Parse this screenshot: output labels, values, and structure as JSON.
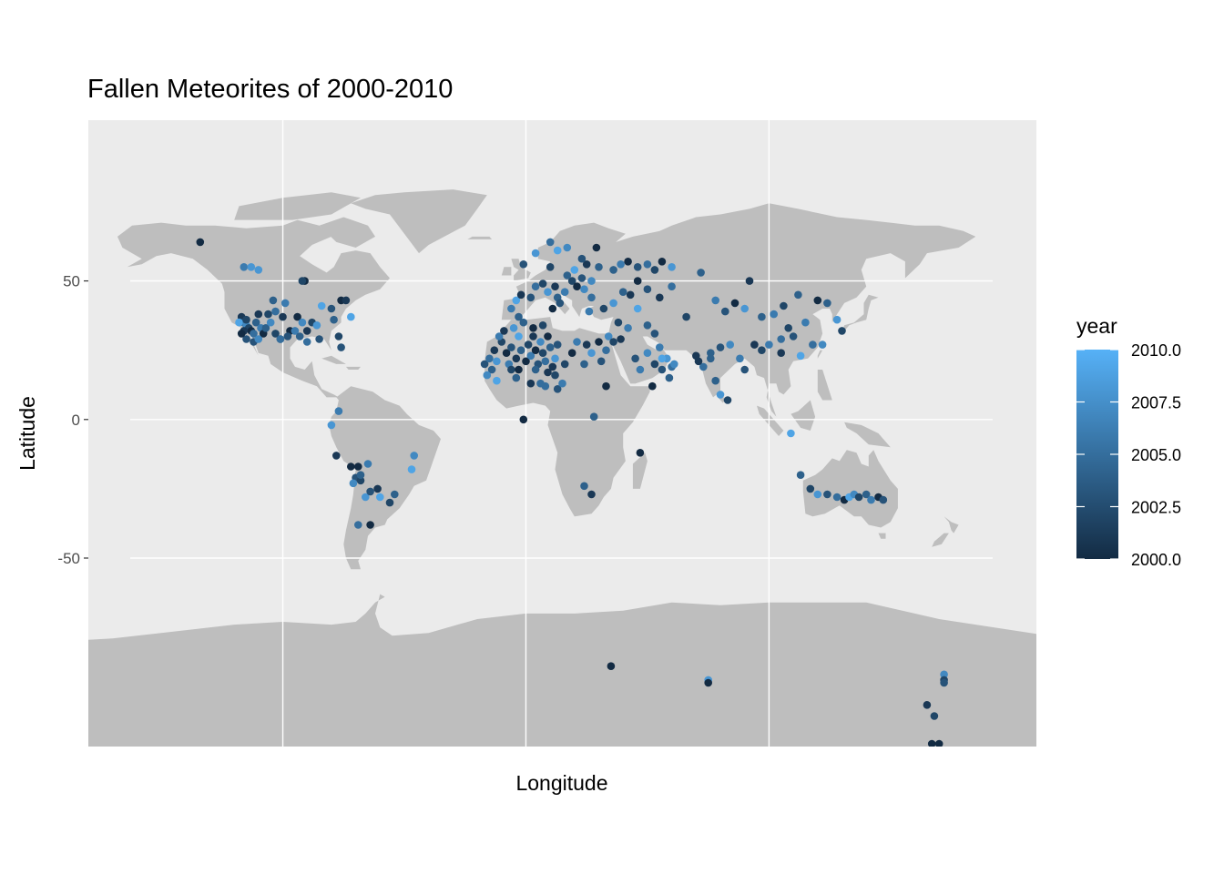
{
  "chart_data": {
    "type": "scatter",
    "title": "Fallen Meteorites of 2000-2010",
    "xlabel": "Longitude",
    "ylabel": "Latitude",
    "x_ticks": [],
    "y_ticks": [
      -50,
      0,
      50
    ],
    "xlim": [
      -180,
      210
    ],
    "ylim": [
      -118,
      108
    ],
    "grid": true,
    "x_gridlines": [
      -100,
      0,
      100
    ],
    "background": "light gray panel with gray world land masses",
    "legend": {
      "title": "year",
      "position": "right",
      "type": "colorbar",
      "range": [
        2000,
        2010
      ],
      "breaks": [
        2000.0,
        2002.5,
        2005.0,
        2007.5,
        2010.0
      ],
      "labels": [
        "2000.0",
        "2002.5",
        "2005.0",
        "2007.5",
        "2010.0"
      ],
      "color_low": "#132B43",
      "color_high": "#56B1F7"
    },
    "colors": {
      "panel": "#EBEBEB",
      "land": "#BEBEBE",
      "grid": "#FFFFFF",
      "low": "#132B43",
      "high": "#56B1F7"
    },
    "points": [
      [
        -134,
        64,
        2000
      ],
      [
        -116,
        55,
        2006
      ],
      [
        -113,
        55,
        2008
      ],
      [
        -110,
        54,
        2008
      ],
      [
        -91,
        50,
        2000
      ],
      [
        -104,
        43,
        2004
      ],
      [
        -117,
        37,
        2001
      ],
      [
        -116,
        35,
        2003
      ],
      [
        -115,
        34,
        2007
      ],
      [
        -114,
        33,
        2002
      ],
      [
        -113,
        32,
        2000
      ],
      [
        -112,
        31,
        2005
      ],
      [
        -116,
        32,
        2001
      ],
      [
        -118,
        35,
        2009
      ],
      [
        -115,
        36,
        2002
      ],
      [
        -111,
        35,
        2004
      ],
      [
        -109,
        33,
        2006
      ],
      [
        -108,
        31,
        2000
      ],
      [
        -112,
        28,
        2003
      ],
      [
        -110,
        29,
        2007
      ],
      [
        -106,
        38,
        2002
      ],
      [
        -103,
        39,
        2005
      ],
      [
        -100,
        37,
        2001
      ],
      [
        -97,
        32,
        2000
      ],
      [
        -98,
        30,
        2003
      ],
      [
        -95,
        32,
        2006
      ],
      [
        -93,
        30,
        2004
      ],
      [
        -90,
        32,
        2001
      ],
      [
        -88,
        35,
        2002
      ],
      [
        -86,
        34,
        2008
      ],
      [
        -84,
        41,
        2009
      ],
      [
        -79,
        36,
        2004
      ],
      [
        -76,
        43,
        2000
      ],
      [
        -74,
        43,
        2001
      ],
      [
        -80,
        40,
        2003
      ],
      [
        -77,
        30,
        2002
      ],
      [
        -76,
        26,
        2003
      ],
      [
        -72,
        37,
        2009
      ],
      [
        -90,
        28,
        2005
      ],
      [
        -101,
        29,
        2002
      ],
      [
        -94,
        37,
        2000
      ],
      [
        -92,
        35,
        2007
      ],
      [
        -85,
        29,
        2003
      ],
      [
        -99,
        42,
        2006
      ],
      [
        -107,
        33,
        2004
      ],
      [
        -110,
        38,
        2001
      ],
      [
        -105,
        35,
        2007
      ],
      [
        -103,
        31,
        2002
      ],
      [
        -101,
        29,
        2005
      ],
      [
        -115,
        29,
        2003
      ],
      [
        -117,
        31,
        2000
      ],
      [
        -92,
        50,
        2002
      ],
      [
        -80,
        -2,
        2008
      ],
      [
        -77,
        3,
        2006
      ],
      [
        -78,
        -13,
        2001
      ],
      [
        -72,
        -17,
        2000
      ],
      [
        -70,
        -21,
        2003
      ],
      [
        -71,
        -23,
        2007
      ],
      [
        -68,
        -22,
        2002
      ],
      [
        -65,
        -16,
        2006
      ],
      [
        -69,
        -17,
        2000
      ],
      [
        -68,
        -20,
        2004
      ],
      [
        -66,
        -28,
        2008
      ],
      [
        -64,
        -26,
        2003
      ],
      [
        -61,
        -25,
        2001
      ],
      [
        -60,
        -28,
        2009
      ],
      [
        -56,
        -30,
        2002
      ],
      [
        -54,
        -27,
        2004
      ],
      [
        -46,
        -13,
        2007
      ],
      [
        -47,
        -18,
        2009
      ],
      [
        -69,
        -38,
        2005
      ],
      [
        -64,
        -38,
        2000
      ],
      [
        -17,
        20,
        2003
      ],
      [
        -15,
        22,
        2005
      ],
      [
        -13,
        25,
        2001
      ],
      [
        -12,
        21,
        2008
      ],
      [
        -10,
        28,
        2002
      ],
      [
        -8,
        24,
        2000
      ],
      [
        -7,
        20,
        2006
      ],
      [
        -6,
        26,
        2003
      ],
      [
        -4,
        22,
        2001
      ],
      [
        -3,
        30,
        2009
      ],
      [
        -2,
        25,
        2004
      ],
      [
        0,
        21,
        2000
      ],
      [
        1,
        27,
        2002
      ],
      [
        2,
        23,
        2006
      ],
      [
        3,
        30,
        2001
      ],
      [
        4,
        25,
        2000
      ],
      [
        5,
        20,
        2003
      ],
      [
        6,
        28,
        2007
      ],
      [
        7,
        24,
        2002
      ],
      [
        8,
        21,
        2005
      ],
      [
        9,
        30,
        2000
      ],
      [
        10,
        26,
        2004
      ],
      [
        11,
        19,
        2001
      ],
      [
        12,
        22,
        2008
      ],
      [
        13,
        27,
        2003
      ],
      [
        -11,
        30,
        2006
      ],
      [
        -9,
        32,
        2001
      ],
      [
        -5,
        33,
        2008
      ],
      [
        -1,
        35,
        2004
      ],
      [
        3,
        33,
        2000
      ],
      [
        7,
        34,
        2002
      ],
      [
        -12,
        14,
        2009
      ],
      [
        -4,
        15,
        2004
      ],
      [
        2,
        13,
        2001
      ],
      [
        8,
        12,
        2005
      ],
      [
        13,
        11,
        2003
      ],
      [
        16,
        20,
        2002
      ],
      [
        19,
        24,
        2000
      ],
      [
        21,
        28,
        2006
      ],
      [
        24,
        20,
        2004
      ],
      [
        25,
        27,
        2001
      ],
      [
        27,
        24,
        2008
      ],
      [
        30,
        28,
        2000
      ],
      [
        33,
        25,
        2005
      ],
      [
        31,
        21,
        2003
      ],
      [
        34,
        30,
        2007
      ],
      [
        36,
        28,
        2002
      ],
      [
        33,
        12,
        2000
      ],
      [
        28,
        1,
        2004
      ],
      [
        -1,
        0,
        2000
      ],
      [
        -6,
        18,
        2002
      ],
      [
        -14,
        18,
        2004
      ],
      [
        9,
        17,
        2001
      ],
      [
        6,
        13,
        2005
      ],
      [
        -16,
        16,
        2007
      ],
      [
        -3,
        18,
        2000
      ],
      [
        4,
        18,
        2004
      ],
      [
        12,
        16,
        2002
      ],
      [
        15,
        13,
        2006
      ],
      [
        24,
        -24,
        2004
      ],
      [
        27,
        -27,
        2001
      ],
      [
        47,
        -12,
        2000
      ],
      [
        -6,
        40,
        2006
      ],
      [
        -3,
        37,
        2004
      ],
      [
        -4,
        43,
        2009
      ],
      [
        -2,
        45,
        2001
      ],
      [
        2,
        44,
        2003
      ],
      [
        4,
        48,
        2005
      ],
      [
        7,
        49,
        2002
      ],
      [
        9,
        46,
        2008
      ],
      [
        12,
        48,
        2001
      ],
      [
        13,
        44,
        2004
      ],
      [
        16,
        46,
        2006
      ],
      [
        19,
        50,
        2002
      ],
      [
        21,
        48,
        2000
      ],
      [
        17,
        52,
        2004
      ],
      [
        20,
        54,
        2009
      ],
      [
        23,
        51,
        2003
      ],
      [
        27,
        50,
        2007
      ],
      [
        25,
        56,
        2001
      ],
      [
        30,
        55,
        2004
      ],
      [
        10,
        55,
        2002
      ],
      [
        -1,
        56,
        2003
      ],
      [
        4,
        60,
        2008
      ],
      [
        10,
        64,
        2005
      ],
      [
        13,
        61,
        2009
      ],
      [
        17,
        62,
        2007
      ],
      [
        23,
        58,
        2003
      ],
      [
        29,
        62,
        2000
      ],
      [
        24,
        47,
        2007
      ],
      [
        27,
        44,
        2005
      ],
      [
        14,
        42,
        2003
      ],
      [
        11,
        40,
        2000
      ],
      [
        26,
        39,
        2006
      ],
      [
        32,
        40,
        2002
      ],
      [
        36,
        42,
        2008
      ],
      [
        40,
        46,
        2004
      ],
      [
        43,
        45,
        2001
      ],
      [
        38,
        35,
        2002
      ],
      [
        42,
        33,
        2006
      ],
      [
        46,
        40,
        2009
      ],
      [
        50,
        34,
        2004
      ],
      [
        53,
        31,
        2003
      ],
      [
        55,
        26,
        2006
      ],
      [
        58,
        22,
        2008
      ],
      [
        60,
        19,
        2005
      ],
      [
        53,
        20,
        2002
      ],
      [
        56,
        18,
        2003
      ],
      [
        50,
        24,
        2007
      ],
      [
        59,
        15,
        2004
      ],
      [
        52,
        12,
        2000
      ],
      [
        47,
        18,
        2006
      ],
      [
        45,
        22,
        2003
      ],
      [
        39,
        29,
        2001
      ],
      [
        56,
        22,
        2009
      ],
      [
        61,
        20,
        2007
      ],
      [
        42,
        57,
        2000
      ],
      [
        46,
        55,
        2003
      ],
      [
        50,
        56,
        2005
      ],
      [
        53,
        54,
        2002
      ],
      [
        56,
        57,
        2000
      ],
      [
        60,
        55,
        2008
      ],
      [
        39,
        56,
        2006
      ],
      [
        36,
        54,
        2004
      ],
      [
        46,
        50,
        2000
      ],
      [
        50,
        47,
        2003
      ],
      [
        55,
        44,
        2001
      ],
      [
        60,
        48,
        2005
      ],
      [
        66,
        37,
        2002
      ],
      [
        72,
        53,
        2004
      ],
      [
        78,
        43,
        2006
      ],
      [
        82,
        39,
        2003
      ],
      [
        86,
        42,
        2000
      ],
      [
        90,
        40,
        2008
      ],
      [
        92,
        50,
        2001
      ],
      [
        97,
        37,
        2004
      ],
      [
        102,
        38,
        2006
      ],
      [
        106,
        41,
        2002
      ],
      [
        112,
        45,
        2004
      ],
      [
        120,
        43,
        2000
      ],
      [
        124,
        42,
        2004
      ],
      [
        128,
        36,
        2008
      ],
      [
        130,
        32,
        2002
      ],
      [
        115,
        35,
        2006
      ],
      [
        110,
        30,
        2003
      ],
      [
        105,
        24,
        2001
      ],
      [
        100,
        27,
        2006
      ],
      [
        113,
        23,
        2009
      ],
      [
        118,
        27,
        2005
      ],
      [
        108,
        33,
        2002
      ],
      [
        80,
        26,
        2003
      ],
      [
        76,
        24,
        2004
      ],
      [
        73,
        19,
        2005
      ],
      [
        71,
        21,
        2001
      ],
      [
        78,
        14,
        2004
      ],
      [
        80,
        9,
        2008
      ],
      [
        83,
        7,
        2002
      ],
      [
        88,
        22,
        2006
      ],
      [
        76,
        22,
        2004
      ],
      [
        70,
        23,
        2001
      ],
      [
        90,
        18,
        2003
      ],
      [
        84,
        27,
        2007
      ],
      [
        97,
        25,
        2002
      ],
      [
        122,
        27,
        2007
      ],
      [
        105,
        29,
        2005
      ],
      [
        94,
        27,
        2001
      ],
      [
        109,
        -5,
        2009
      ],
      [
        113,
        -20,
        2004
      ],
      [
        117,
        -25,
        2002
      ],
      [
        120,
        -27,
        2008
      ],
      [
        124,
        -27,
        2003
      ],
      [
        128,
        -28,
        2005
      ],
      [
        131,
        -29,
        2000
      ],
      [
        133,
        -28,
        2009
      ],
      [
        135,
        -27,
        2007
      ],
      [
        137,
        -28,
        2002
      ],
      [
        140,
        -27,
        2004
      ],
      [
        142,
        -29,
        2006
      ],
      [
        145,
        -28,
        2000
      ],
      [
        147,
        -29,
        2003
      ],
      [
        35,
        -89,
        2000
      ],
      [
        75,
        -94,
        2008
      ],
      [
        75,
        -95,
        2000
      ],
      [
        172,
        -92,
        2007
      ],
      [
        172,
        -94,
        2002
      ],
      [
        172,
        -95,
        2003
      ],
      [
        165,
        -103,
        2001
      ],
      [
        168,
        -107,
        2002
      ],
      [
        167,
        -117,
        2000
      ],
      [
        170,
        -117,
        2000
      ]
    ]
  }
}
